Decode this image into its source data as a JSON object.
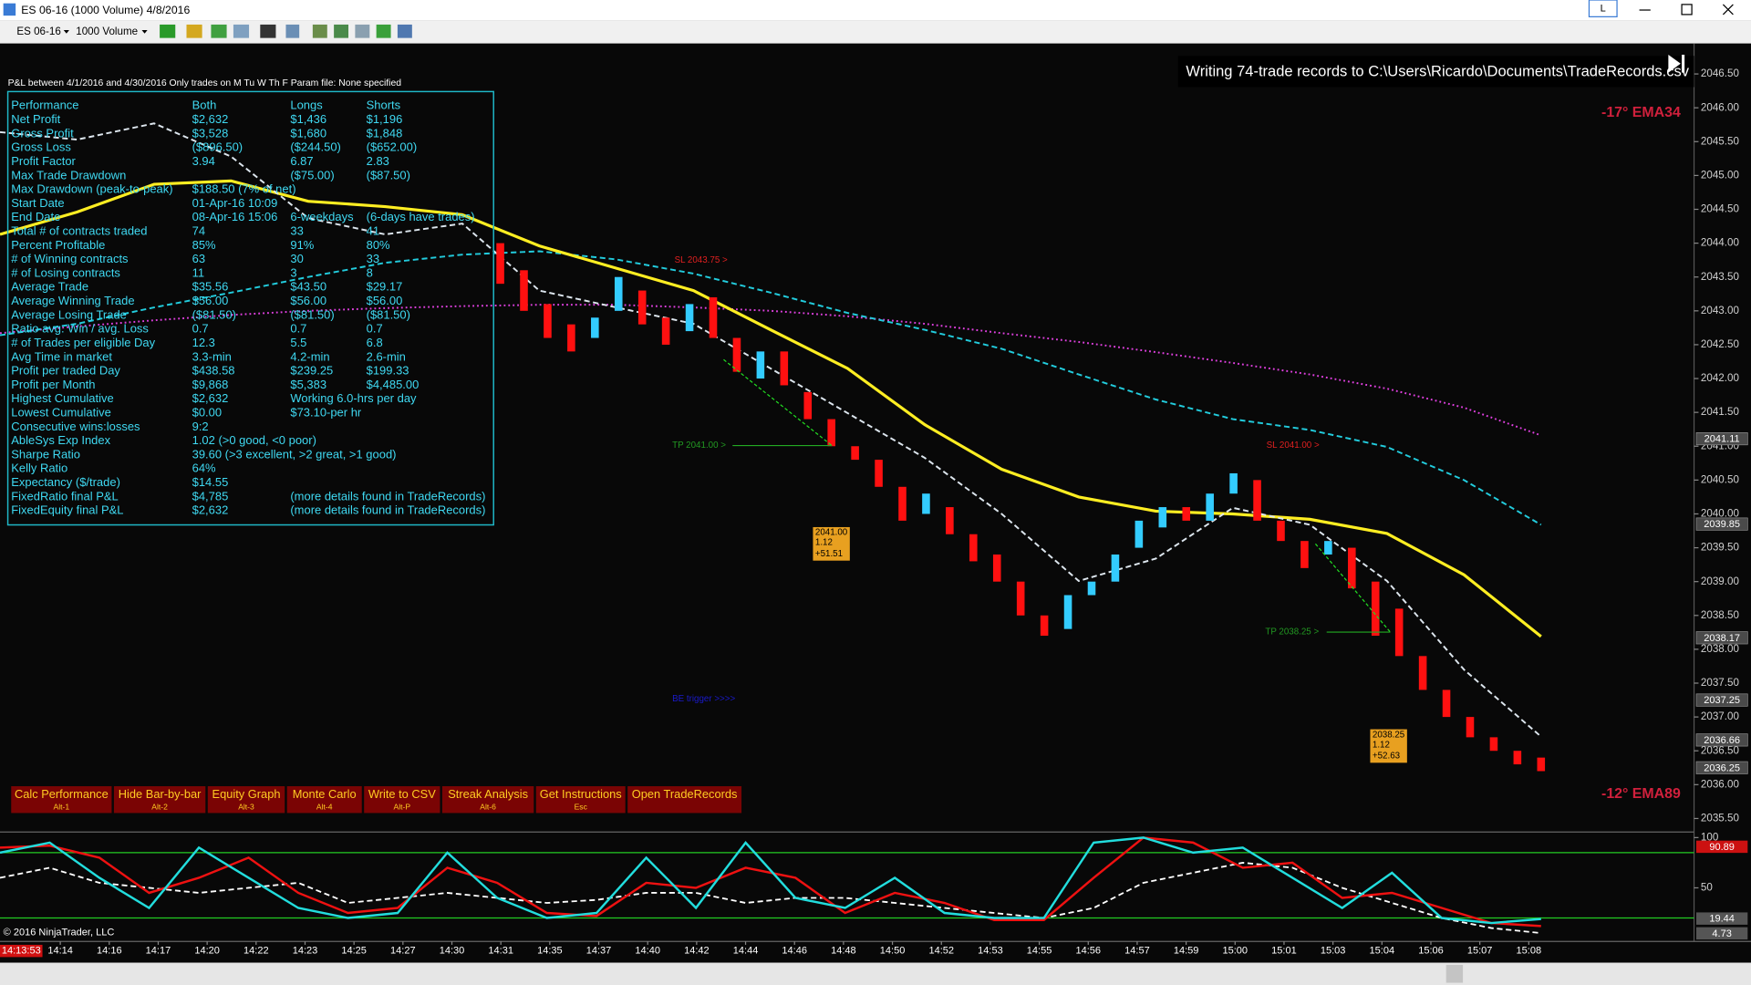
{
  "window": {
    "title": "ES 06-16 (1000 Volume)  4/8/2016",
    "layout_button": "L"
  },
  "toolbar": {
    "instrument": "ES 06-16",
    "interval": "1000 Volume"
  },
  "header": "P&L between 4/1/2016 and 4/30/2016  Only trades on M Tu W Th F   Param file: None specified",
  "notice": "Writing 74-trade records to C:\\Users\\Ricardo\\Documents\\TradeRecords.csv",
  "copyright": "© 2016 NinjaTrader, LLC",
  "ema_labels": [
    "-17° EMA34",
    "-12° EMA89"
  ],
  "annotations": {
    "sl_1": "SL 2043.75 >",
    "tp_1": "TP 2041.00 >",
    "sl_2": "SL 2041.00 >",
    "tp_2": "TP 2038.25 >",
    "be": "BE trigger >>>>",
    "box_1": [
      "2041.00",
      "1.12",
      "+51.51"
    ],
    "box_2": [
      "2038.25",
      "1.12",
      "+52.63"
    ]
  },
  "table": {
    "rows": [
      {
        "label": "Performance",
        "both": "Both",
        "longs": "Longs",
        "shorts": "Shorts"
      },
      {
        "label": "Net Profit",
        "both": "$2,632",
        "longs": "$1,436",
        "shorts": "$1,196"
      },
      {
        "label": "Gross Profit",
        "both": "$3,528",
        "longs": "$1,680",
        "shorts": "$1,848"
      },
      {
        "label": "Gross Loss",
        "both": "($896.50)",
        "longs": "($244.50)",
        "shorts": "($652.00)"
      },
      {
        "label": "Profit Factor",
        "both": "3.94",
        "longs": "6.87",
        "shorts": "2.83"
      },
      {
        "label": "Max Trade Drawdown",
        "longs": "($75.00)",
        "shorts": "($87.50)"
      },
      {
        "label": "Max Drawdown (peak-to-peak)",
        "both": "$188.50 (7% of net)"
      },
      {
        "label": "Start Date",
        "both": "01-Apr-16 10:09"
      },
      {
        "label": "End Date",
        "both": "08-Apr-16 15:06",
        "longs": "6-weekdays",
        "shorts": "(6-days have trades)"
      },
      {
        "label": "Total # of contracts traded",
        "both": "74",
        "longs": "33",
        "shorts": "41"
      },
      {
        "label": "Percent Profitable",
        "both": "85%",
        "longs": "91%",
        "shorts": "80%"
      },
      {
        "label": "# of Winning contracts",
        "both": "63",
        "longs": "30",
        "shorts": "33"
      },
      {
        "label": "# of Losing contracts",
        "both": "11",
        "longs": "3",
        "shorts": "8"
      },
      {
        "label": "Average Trade",
        "both": "$35.56",
        "longs": "$43.50",
        "shorts": "$29.17"
      },
      {
        "label": "Average Winning Trade",
        "both": "$56.00",
        "longs": "$56.00",
        "shorts": "$56.00"
      },
      {
        "label": "Average Losing Trade",
        "both": "($81.50)",
        "longs": "($81.50)",
        "shorts": "($81.50)"
      },
      {
        "label": "Ratio avg. Win / avg. Loss",
        "both": "0.7",
        "longs": "0.7",
        "shorts": "0.7"
      },
      {
        "label": "# of Trades per eligible Day",
        "both": "12.3",
        "longs": "5.5",
        "shorts": "6.8"
      },
      {
        "label": "Avg Time in market",
        "both": "3.3-min",
        "longs": "4.2-min",
        "shorts": "2.6-min"
      },
      {
        "label": "Profit per traded Day",
        "both": "$438.58",
        "longs": "$239.25",
        "shorts": "$199.33"
      },
      {
        "label": "Profit per Month",
        "both": "$9,868",
        "longs": "$5,383",
        "shorts": "$4,485.00"
      },
      {
        "label": "Highest Cumulative",
        "both": "$2,632",
        "longs": "Working 6.0-hrs per day"
      },
      {
        "label": "Lowest Cumulative",
        "both": "$0.00",
        "longs": "$73.10-per hr"
      },
      {
        "label": "Consecutive wins:losses",
        "both": "9:2"
      },
      {
        "label": "AbleSys Exp Index",
        "both": "1.02 (>0 good, <0 poor)"
      },
      {
        "label": "Sharpe Ratio",
        "both": "39.60 (>3 excellent, >2 great, >1 good)"
      },
      {
        "label": "Kelly Ratio",
        "both": "64%"
      },
      {
        "label": "Expectancy ($/trade)",
        "both": "$14.55"
      },
      {
        "label": "FixedRatio final P&L",
        "both": "$4,785",
        "longs": "(more details found in TradeRecords)"
      },
      {
        "label": "FixedEquity final P&L",
        "both": "$2,632",
        "longs": "(more details found in TradeRecords)"
      }
    ]
  },
  "buttons": [
    {
      "label": "Calc Performance",
      "key": "Alt-1"
    },
    {
      "label": "Hide Bar-by-bar",
      "key": "Alt-2"
    },
    {
      "label": "Equity Graph",
      "key": "Alt-3"
    },
    {
      "label": "Monte Carlo",
      "key": "Alt-4"
    },
    {
      "label": "Write to CSV",
      "key": "Alt-P"
    },
    {
      "label": "Streak Analysis",
      "key": "Alt-6"
    },
    {
      "label": "Get Instructions",
      "key": "Esc"
    },
    {
      "label": "Open TradeRecords"
    }
  ],
  "time_axis": {
    "current": "14:13:53",
    "labels": [
      "14:14",
      "14:16",
      "14:17",
      "14:20",
      "14:22",
      "14:23",
      "14:25",
      "14:27",
      "14:30",
      "14:31",
      "14:35",
      "14:37",
      "14:40",
      "14:42",
      "14:44",
      "14:46",
      "14:48",
      "14:50",
      "14:52",
      "14:53",
      "14:55",
      "14:56",
      "14:57",
      "14:59",
      "15:00",
      "15:01",
      "15:03",
      "15:04",
      "15:06",
      "15:07",
      "15:08"
    ]
  },
  "chart_data": [
    {
      "type": "candlestick",
      "open": [
        2044.0,
        2043.6,
        2043.1,
        2042.8,
        2042.6,
        2043.0,
        2043.3,
        2042.9,
        2042.7,
        2043.2,
        2042.6,
        2042.0,
        2042.4,
        2041.8,
        2041.4,
        2041.0,
        2040.8,
        2040.4,
        2040.0,
        2040.1,
        2039.7,
        2039.4,
        2039.0,
        2038.5,
        2038.3,
        2038.8,
        2039.0,
        2039.5,
        2039.8,
        2040.1,
        2039.9,
        2040.3,
        2040.5,
        2039.9,
        2039.6,
        2039.4,
        2039.5,
        2039.0,
        2038.6,
        2037.9,
        2037.4,
        2037.0,
        2036.7,
        2036.5,
        2036.4
      ],
      "close": [
        2043.4,
        2043.0,
        2042.6,
        2042.4,
        2042.9,
        2043.5,
        2042.8,
        2042.5,
        2043.1,
        2042.6,
        2042.1,
        2042.4,
        2041.9,
        2041.4,
        2041.0,
        2040.8,
        2040.4,
        2039.9,
        2040.3,
        2039.7,
        2039.3,
        2039.0,
        2038.5,
        2038.2,
        2038.8,
        2039.0,
        2039.4,
        2039.9,
        2040.1,
        2039.9,
        2040.3,
        2040.6,
        2039.9,
        2039.6,
        2039.2,
        2039.6,
        2038.9,
        2038.2,
        2037.9,
        2037.4,
        2037.0,
        2036.7,
        2036.5,
        2036.3,
        2036.2
      ],
      "up_color": "#33ccff",
      "down_color": "#ff1010",
      "ylim": [
        2035.35,
        2046.85
      ],
      "yticks": [
        {
          "value": 2046.5,
          "label": "2046.50"
        },
        {
          "value": 2046,
          "label": "2046.00"
        },
        {
          "value": 2045.5,
          "label": "2045.50"
        },
        {
          "value": 2045,
          "label": "2045.00"
        },
        {
          "value": 2044.5,
          "label": "2044.50"
        },
        {
          "value": 2044,
          "label": "2044.00"
        },
        {
          "value": 2043.5,
          "label": "2043.50"
        },
        {
          "value": 2043,
          "label": "2043.00"
        },
        {
          "value": 2042.5,
          "label": "2042.50"
        },
        {
          "value": 2042,
          "label": "2042.00"
        },
        {
          "value": 2041.5,
          "label": "2041.50"
        },
        {
          "value": 2041,
          "label": "2041.00"
        },
        {
          "value": 2040.5,
          "label": "2040.50"
        },
        {
          "value": 2040,
          "label": "2040.00"
        },
        {
          "value": 2039.5,
          "label": "2039.50"
        },
        {
          "value": 2039,
          "label": "2039.00"
        },
        {
          "value": 2038.5,
          "label": "2038.50"
        },
        {
          "value": 2038,
          "label": "2038.00"
        },
        {
          "value": 2037.5,
          "label": "2037.50"
        },
        {
          "value": 2037,
          "label": "2037.00"
        },
        {
          "value": 2036.5,
          "label": "2036.50"
        },
        {
          "value": 2036,
          "label": "2036.00"
        },
        {
          "value": 2035.5,
          "label": "2035.50"
        }
      ],
      "series": [
        {
          "color": "#e040e0",
          "style": "dotted",
          "values": [
            2042.67,
            2042.77,
            2042.86,
            2042.94,
            2043.0,
            2043.04,
            2043.07,
            2043.09,
            2043.09,
            2043.05,
            2043.0,
            2042.92,
            2042.81,
            2042.67,
            2042.54,
            2042.39,
            2042.23,
            2042.06,
            2041.85,
            2041.57,
            2041.16
          ]
        },
        {
          "color": "#22ccdd",
          "style": "dashed",
          "values": [
            2042.64,
            2042.81,
            2043.05,
            2043.27,
            2043.5,
            2043.71,
            2043.83,
            2043.88,
            2043.76,
            2043.55,
            2043.27,
            2042.97,
            2042.72,
            2042.44,
            2042.06,
            2041.69,
            2041.4,
            2041.24,
            2040.99,
            2040.5,
            2039.84
          ]
        },
        {
          "color": "#ffee22",
          "style": "solid",
          "values": [
            2044.13,
            2044.46,
            2044.87,
            2044.92,
            2044.62,
            2044.54,
            2044.42,
            2043.96,
            2043.63,
            2043.3,
            2042.72,
            2042.15,
            2041.32,
            2040.66,
            2040.25,
            2040.04,
            2040.0,
            2039.92,
            2039.71,
            2039.1,
            2038.19
          ]
        },
        {
          "color": "#dde6ee",
          "style": "dashed",
          "values": [
            2045.64,
            2045.53,
            2045.77,
            2045.28,
            2044.37,
            2044.13,
            2044.29,
            2043.3,
            2043.05,
            2042.81,
            2042.15,
            2041.49,
            2040.83,
            2040.0,
            2039.01,
            2039.34,
            2040.09,
            2039.84,
            2039.01,
            2037.7,
            2036.71
          ]
        }
      ],
      "price_tags": [
        2041.11,
        2039.85,
        2038.17,
        2037.25,
        2036.66,
        2036.25
      ]
    },
    {
      "type": "line",
      "ylim": [
        0,
        100
      ],
      "yticks": [
        100,
        50
      ],
      "levels": [
        85,
        20
      ],
      "level_color": "#22cc22",
      "series": [
        {
          "color": "#ffffff",
          "style": "dashed",
          "values": [
            60,
            70,
            55,
            50,
            45,
            50,
            55,
            35,
            40,
            45,
            40,
            35,
            38,
            45,
            45,
            35,
            40,
            40,
            35,
            30,
            25,
            20,
            30,
            55,
            65,
            75,
            70,
            50,
            35,
            20,
            10,
            5
          ]
        },
        {
          "color": "#ee1111",
          "style": "solid",
          "values": [
            90,
            92,
            80,
            45,
            60,
            80,
            45,
            25,
            30,
            70,
            55,
            25,
            22,
            55,
            50,
            70,
            60,
            25,
            45,
            35,
            18,
            18,
            60,
            100,
            95,
            70,
            75,
            40,
            45,
            30,
            15,
            12
          ]
        },
        {
          "color": "#22dddd",
          "style": "solid",
          "values": [
            85,
            95,
            60,
            30,
            90,
            60,
            30,
            20,
            25,
            85,
            40,
            20,
            25,
            80,
            30,
            95,
            40,
            30,
            60,
            25,
            20,
            20,
            95,
            100,
            85,
            90,
            60,
            30,
            65,
            20,
            15,
            19
          ]
        }
      ],
      "tags": [
        90.89,
        19.44,
        4.73
      ],
      "tag_colors": [
        "#cc1111",
        "#555555",
        "#555555"
      ]
    }
  ]
}
